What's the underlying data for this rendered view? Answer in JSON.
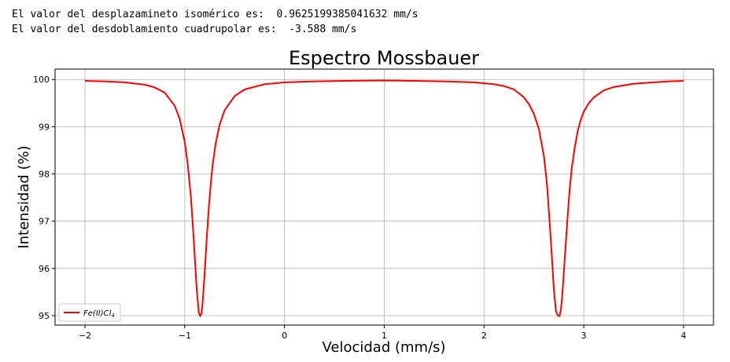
{
  "output": {
    "line1": "El valor del desplazamineto isomérico es:  0.9625199385041632 mm/s",
    "line2": "El valor del desdoblamiento cuadrupolar es:  -3.588 mm/s"
  },
  "chart_data": {
    "type": "line",
    "title": "Espectro Mossbauer",
    "xlabel": "Velocidad (mm/s)",
    "ylabel": "Intensidad (%)",
    "xlim": [
      -2.3,
      4.3
    ],
    "ylim": [
      94.8,
      100.22
    ],
    "xticks": [
      -2,
      -1,
      0,
      1,
      2,
      3,
      4
    ],
    "xtick_labels": [
      "−2",
      "−1",
      "0",
      "1",
      "2",
      "3",
      "4"
    ],
    "yticks": [
      95,
      96,
      97,
      98,
      99,
      100
    ],
    "ytick_labels": [
      "95",
      "96",
      "97",
      "98",
      "99",
      "100"
    ],
    "grid": true,
    "legend_position": "lower-left",
    "series": [
      {
        "name": "Fe(II)Cl4",
        "color": "#ff0000",
        "x": [
          -2.0,
          -1.8,
          -1.6,
          -1.4,
          -1.3,
          -1.2,
          -1.1,
          -1.05,
          -1.0,
          -0.97,
          -0.94,
          -0.92,
          -0.9,
          -0.88,
          -0.86,
          -0.845,
          -0.832,
          -0.82,
          -0.8,
          -0.78,
          -0.76,
          -0.74,
          -0.72,
          -0.69,
          -0.65,
          -0.6,
          -0.5,
          -0.4,
          -0.2,
          0.0,
          0.3,
          0.6,
          0.96,
          1.3,
          1.6,
          1.9,
          2.1,
          2.2,
          2.3,
          2.4,
          2.45,
          2.5,
          2.55,
          2.6,
          2.63,
          2.66,
          2.68,
          2.7,
          2.72,
          2.74,
          2.757,
          2.77,
          2.785,
          2.8,
          2.82,
          2.84,
          2.86,
          2.88,
          2.91,
          2.94,
          2.97,
          3.0,
          3.05,
          3.1,
          3.2,
          3.3,
          3.5,
          3.7,
          3.85,
          4.0
        ],
        "y": [
          99.97,
          99.96,
          99.94,
          99.89,
          99.83,
          99.72,
          99.44,
          99.16,
          98.67,
          98.2,
          97.55,
          96.95,
          96.25,
          95.55,
          95.08,
          94.99,
          95.05,
          95.3,
          95.92,
          96.62,
          97.26,
          97.78,
          98.2,
          98.65,
          99.05,
          99.35,
          99.65,
          99.79,
          99.9,
          99.94,
          99.96,
          99.97,
          99.98,
          99.97,
          99.96,
          99.94,
          99.9,
          99.86,
          99.79,
          99.62,
          99.48,
          99.27,
          98.95,
          98.38,
          97.8,
          96.9,
          96.25,
          95.55,
          95.1,
          95.0,
          94.99,
          95.12,
          95.45,
          95.92,
          96.55,
          97.17,
          97.72,
          98.14,
          98.57,
          98.92,
          99.15,
          99.32,
          99.5,
          99.62,
          99.77,
          99.84,
          99.91,
          99.94,
          99.96,
          99.97
        ]
      }
    ]
  }
}
